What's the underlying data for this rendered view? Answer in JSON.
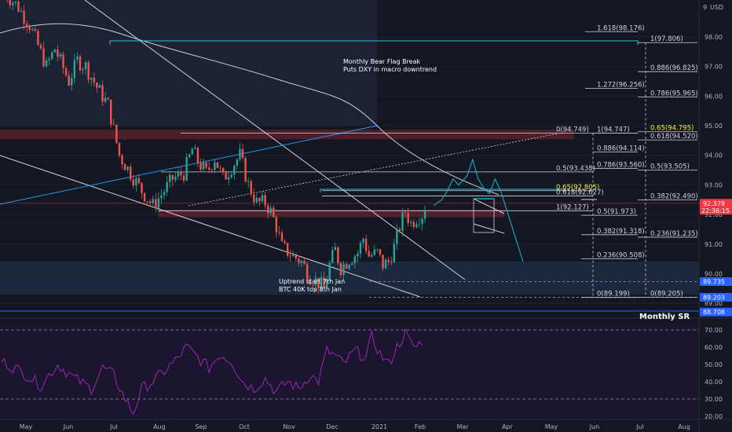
{
  "header": {
    "currency": "USD"
  },
  "chart_data": [
    {
      "type": "candlestick",
      "ylim": [
        88.4,
        99.0
      ],
      "y_ticks": [
        89.0,
        90.0,
        91.0,
        92.0,
        93.0,
        94.0,
        95.0,
        96.0,
        97.0,
        98.0
      ],
      "x_tick_labels": [
        "May",
        "Jun",
        "Jul",
        "Aug",
        "Sep",
        "Oct",
        "Nov",
        "Dec",
        "2021",
        "Feb",
        "Mar",
        "Apr",
        "May",
        "Jun",
        "Jul",
        "Aug"
      ],
      "anchor_closes": [
        [
          0,
          99.6
        ],
        [
          6,
          99.0
        ],
        [
          10,
          98.4
        ],
        [
          16,
          97.0
        ],
        [
          19,
          97.6
        ],
        [
          24,
          96.5
        ],
        [
          27,
          97.2
        ],
        [
          30,
          97.0
        ],
        [
          34,
          96.3
        ],
        [
          38,
          95.7
        ],
        [
          42,
          94.0
        ],
        [
          46,
          93.4
        ],
        [
          50,
          92.8
        ],
        [
          54,
          92.3
        ],
        [
          58,
          92.8
        ],
        [
          61,
          93.2
        ],
        [
          65,
          93.4
        ],
        [
          68,
          94.2
        ],
        [
          70,
          93.8
        ],
        [
          73,
          93.4
        ],
        [
          76,
          93.9
        ],
        [
          79,
          93.2
        ],
        [
          82,
          93.6
        ],
        [
          85,
          94.0
        ],
        [
          88,
          93.0
        ],
        [
          91,
          92.4
        ],
        [
          94,
          92.4
        ],
        [
          96,
          92.1
        ],
        [
          98,
          91.6
        ],
        [
          100,
          90.9
        ],
        [
          104,
          90.6
        ],
        [
          107,
          90.4
        ],
        [
          110,
          89.9
        ],
        [
          113,
          89.7
        ],
        [
          115,
          89.5
        ],
        [
          117,
          90.3
        ],
        [
          119,
          90.8
        ],
        [
          121,
          90.2
        ],
        [
          124,
          90.5
        ],
        [
          127,
          90.7
        ],
        [
          129,
          91.2
        ],
        [
          131,
          90.6
        ],
        [
          134,
          90.7
        ],
        [
          136,
          90.3
        ],
        [
          138,
          90.4
        ],
        [
          140,
          90.9
        ],
        [
          142,
          91.6
        ],
        [
          144,
          92.1
        ],
        [
          146,
          91.7
        ],
        [
          148,
          91.9
        ],
        [
          150,
          92.0
        ],
        [
          151,
          92.3
        ]
      ],
      "projection": [
        [
          154,
          92.3
        ],
        [
          157,
          92.5
        ],
        [
          159,
          92.8
        ],
        [
          161,
          93.2
        ],
        [
          163,
          93.0
        ],
        [
          166,
          93.3
        ],
        [
          168,
          93.85
        ],
        [
          170,
          93.2
        ],
        [
          172,
          92.9
        ],
        [
          174,
          92.7
        ],
        [
          176,
          93.2
        ],
        [
          178,
          92.8
        ],
        [
          180,
          92.2
        ],
        [
          182,
          91.6
        ],
        [
          184,
          91.0
        ],
        [
          186,
          90.4
        ]
      ],
      "indicator": {
        "name": "RSI",
        "ylim": [
          15,
          75
        ],
        "ticks": [
          20.0,
          30.0,
          40.0,
          50.0,
          60.0,
          70.0
        ],
        "upper_band": 70,
        "lower_band": 30,
        "anchors": [
          [
            0,
            52
          ],
          [
            8,
            45
          ],
          [
            14,
            38
          ],
          [
            20,
            50
          ],
          [
            26,
            42
          ],
          [
            32,
            36
          ],
          [
            36,
            48
          ],
          [
            40,
            44
          ],
          [
            44,
            30
          ],
          [
            47,
            22
          ],
          [
            50,
            36
          ],
          [
            54,
            40
          ],
          [
            58,
            46
          ],
          [
            62,
            52
          ],
          [
            66,
            60
          ],
          [
            70,
            54
          ],
          [
            74,
            48
          ],
          [
            78,
            56
          ],
          [
            82,
            52
          ],
          [
            86,
            40
          ],
          [
            90,
            36
          ],
          [
            94,
            42
          ],
          [
            98,
            34
          ],
          [
            102,
            40
          ],
          [
            106,
            36
          ],
          [
            110,
            44
          ],
          [
            113,
            40
          ],
          [
            116,
            58
          ],
          [
            119,
            55
          ],
          [
            122,
            50
          ],
          [
            126,
            58
          ],
          [
            130,
            54
          ],
          [
            132,
            66
          ],
          [
            135,
            56
          ],
          [
            138,
            50
          ],
          [
            141,
            60
          ],
          [
            144,
            68
          ],
          [
            146,
            62
          ],
          [
            148,
            60
          ],
          [
            150,
            64
          ]
        ]
      }
    }
  ],
  "price_tags": [
    {
      "price": 92.379,
      "label": "92.379",
      "sublabel": "22:36:15",
      "color": "#f23645"
    },
    {
      "price": 89.735,
      "label": "89.735",
      "color": "#2962ff"
    },
    {
      "price": 89.203,
      "label": "89.203",
      "color": "#2962ff"
    },
    {
      "price": 88.708,
      "label": "88.708",
      "color": "#2962ff"
    }
  ],
  "fib_left": [
    {
      "price": 98.176,
      "label": "1.618(98.176)"
    },
    {
      "price": 96.256,
      "label": "1.272(96.256)"
    },
    {
      "price": 94.749,
      "label": "0(94.749)"
    },
    {
      "price": 93.438,
      "label": "0.5(93.438)"
    },
    {
      "price": 92.805,
      "label": "0.65(92.805)",
      "highlight": true
    },
    {
      "price": 92.627,
      "label": "0.618(92.627)"
    },
    {
      "price": 92.127,
      "label": "1(92.127)"
    }
  ],
  "fib_mid_a": [
    {
      "price": 94.747,
      "label": "1(94.747)"
    },
    {
      "price": 94.114,
      "label": "0.886(94.114)"
    },
    {
      "price": 93.56,
      "label": "0.786(93.560)"
    }
  ],
  "fib_mid_b": [
    {
      "price": 91.973,
      "label": "0.5(91.973)"
    },
    {
      "price": 91.318,
      "label": "0.382(91.318)"
    },
    {
      "price": 90.508,
      "label": "0.236(90.508)"
    },
    {
      "price": 89.199,
      "label": "0(89.199)"
    }
  ],
  "fib_right": [
    {
      "price": 97.806,
      "label": "1(97.806)"
    },
    {
      "price": 96.825,
      "label": "0.886(96.825)"
    },
    {
      "price": 95.965,
      "label": "0.786(95.965)"
    },
    {
      "price": 94.795,
      "label": "0.65(94.795)",
      "highlight": true
    },
    {
      "price": 94.52,
      "label": "0.618(94.520)"
    },
    {
      "price": 93.505,
      "label": "0.5(93.505)"
    },
    {
      "price": 92.49,
      "label": "0.382(92.490)"
    },
    {
      "price": 91.235,
      "label": "0.236(91.235)"
    },
    {
      "price": 89.205,
      "label": "0(89.205)"
    }
  ],
  "annotations": {
    "bear_flag": [
      "Monthly Bear Flag Break",
      "Puts DXY in macro downtrend"
    ],
    "uptrend": [
      "Uptrend start 7th Jan",
      "BTC 40K top 8th Jan"
    ],
    "monthly_sr": "Monthly SR"
  },
  "colors": {
    "background": "#131722",
    "bull": "#26a69a",
    "bear": "#ef5350",
    "rsi": "#9c27b0",
    "projection": "#22a7c5",
    "zone": "#f23645"
  }
}
